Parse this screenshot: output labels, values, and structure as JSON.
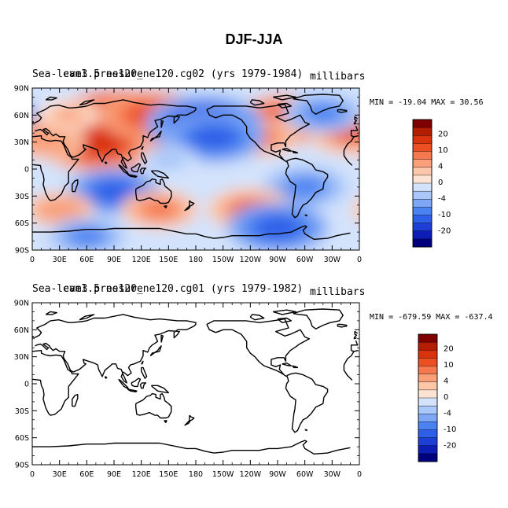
{
  "page": {
    "title": "DJF-JJA"
  },
  "colors": {
    "levels": [
      "#00007f",
      "#0c1eb6",
      "#1d3fd6",
      "#2e5fe8",
      "#4a82f1",
      "#7ea7f5",
      "#a9c7f9",
      "#d3e3fc",
      "#fde3d4",
      "#fcc7a8",
      "#f9a07a",
      "#f5784f",
      "#ec4f22",
      "#d9330d",
      "#b31d02",
      "#7f0000"
    ],
    "land_line": "#000000"
  },
  "chart_data": [
    {
      "type": "contour-map",
      "name": "model-ne120-cg02",
      "left_label": "Sea-level pressure",
      "overlapping_label": "ne120_ne120.cg02 (yrs 1979-1984)",
      "overlapping_label_raw": "cam3.5 ne120_ne120.cg02 (yrs 1979-1984)",
      "units": "millibars",
      "min_max": "MIN = -19.04 MAX =  30.56",
      "min": -19.04,
      "max": 30.56,
      "x_ticks": [
        "0",
        "30E",
        "60E",
        "90E",
        "120E",
        "150E",
        "180",
        "150W",
        "120W",
        "90W",
        "60W",
        "30W",
        "0"
      ],
      "y_ticks": [
        "90N",
        "60N",
        "30N",
        "0",
        "30S",
        "60S",
        "90S"
      ],
      "lon_range": [
        0,
        360
      ],
      "lat_range": [
        -90,
        90
      ],
      "colorbar_labels": [
        "20",
        "10",
        "4",
        "0",
        "-4",
        "-10",
        "-20"
      ],
      "filled": true,
      "anomalies": [
        {
          "lon": 100,
          "lat": 45,
          "value": 28
        },
        {
          "lon": 70,
          "lat": 30,
          "value": 18
        },
        {
          "lon": 130,
          "lat": 60,
          "value": 14
        },
        {
          "lon": 280,
          "lat": 55,
          "value": 14
        },
        {
          "lon": 250,
          "lat": 35,
          "value": 8
        },
        {
          "lon": 20,
          "lat": 30,
          "value": 6
        },
        {
          "lon": 350,
          "lat": 40,
          "value": 10
        },
        {
          "lon": 190,
          "lat": 50,
          "value": -18
        },
        {
          "lon": 200,
          "lat": 35,
          "value": -14
        },
        {
          "lon": 320,
          "lat": 62,
          "value": -9
        },
        {
          "lon": 90,
          "lat": -25,
          "value": -12
        },
        {
          "lon": 300,
          "lat": -20,
          "value": -10
        },
        {
          "lon": 140,
          "lat": -45,
          "value": 8
        },
        {
          "lon": 240,
          "lat": -45,
          "value": 10
        },
        {
          "lon": 30,
          "lat": -45,
          "value": 6
        },
        {
          "lon": 270,
          "lat": -65,
          "value": -14
        },
        {
          "lon": 60,
          "lat": -75,
          "value": -8
        },
        {
          "lon": 150,
          "lat": 10,
          "value": -3
        },
        {
          "lon": 40,
          "lat": 60,
          "value": 4
        }
      ]
    },
    {
      "type": "contour-map",
      "name": "model-ne120-cg01",
      "left_label": "Sea-level pressure",
      "overlapping_label": "ne120_ne120.cg01 (yrs 1979-1982)",
      "overlapping_label_raw": "cam3.5 ne120_ne120.cg01 (yrs 1979-1982)",
      "units": "millibars",
      "min_max": "MIN = -679.59 MAX = -637.4",
      "min": -679.59,
      "max": -637.4,
      "x_ticks": [
        "0",
        "30E",
        "60E",
        "90E",
        "120E",
        "150E",
        "180",
        "150W",
        "120W",
        "90W",
        "60W",
        "30W",
        "0"
      ],
      "y_ticks": [
        "90N",
        "60N",
        "30N",
        "0",
        "30S",
        "60S",
        "90S"
      ],
      "lon_range": [
        0,
        360
      ],
      "lat_range": [
        -90,
        90
      ],
      "colorbar_labels": [
        "20",
        "10",
        "4",
        "0",
        "-4",
        "-10",
        "-20"
      ],
      "filled": false,
      "anomalies": []
    }
  ]
}
